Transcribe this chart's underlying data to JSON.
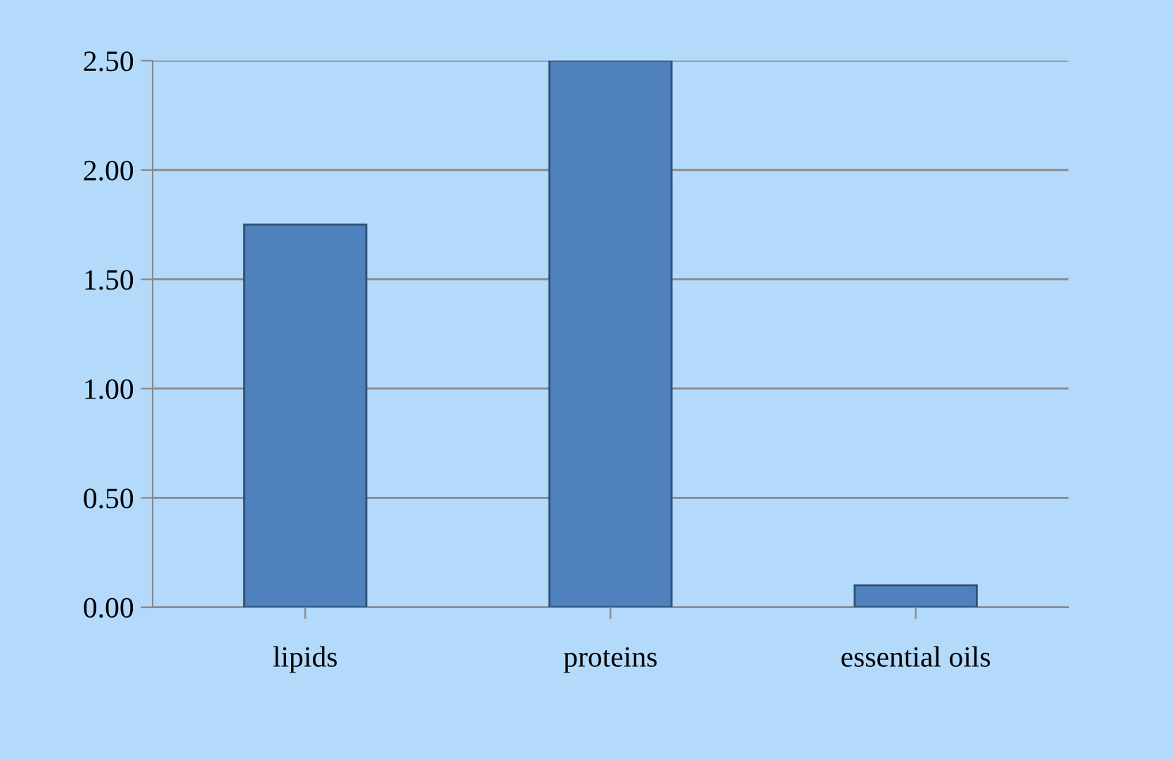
{
  "chart_data": {
    "type": "bar",
    "categories": [
      "lipids",
      "proteins",
      "essential oils"
    ],
    "values": [
      1.75,
      2.5,
      0.1
    ],
    "color": "#4f81bd",
    "ylim": [
      0,
      2.5
    ],
    "yticks": [
      {
        "value": 0,
        "label": "0.00"
      },
      {
        "value": 0.5,
        "label": "0.50"
      },
      {
        "value": 1,
        "label": "1.00"
      },
      {
        "value": 1.5,
        "label": "1.50"
      },
      {
        "value": 2,
        "label": "2.00"
      },
      {
        "value": 2.5,
        "label": "2.50"
      }
    ],
    "grid": "y"
  }
}
